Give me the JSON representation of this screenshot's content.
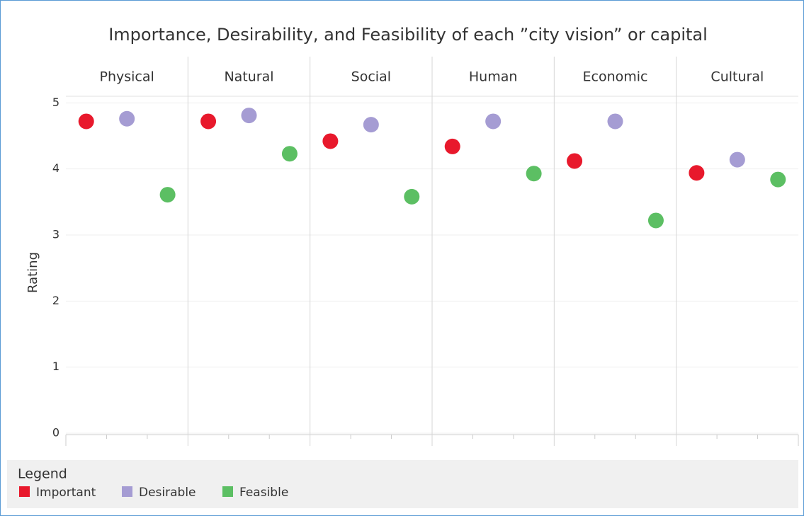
{
  "chart_data": {
    "type": "dot",
    "title": "Importance, Desirability, and Feasibility of each ”city vision” or capital",
    "y_label": "Rating",
    "legend_title": "Legend",
    "categories": [
      "Physical",
      "Natural",
      "Social",
      "Human",
      "Economic",
      "Cultural"
    ],
    "series": [
      {
        "name": "Important",
        "color": "#e8192c",
        "values": [
          4.72,
          4.72,
          4.42,
          4.34,
          4.12,
          3.94
        ]
      },
      {
        "name": "Desirable",
        "color": "#a59cd3",
        "values": [
          4.76,
          4.81,
          4.67,
          4.72,
          4.72,
          4.14
        ]
      },
      {
        "name": "Feasible",
        "color": "#5cbf63",
        "values": [
          3.61,
          4.23,
          3.58,
          3.93,
          3.22,
          3.84
        ]
      }
    ],
    "ylim": [
      0,
      5.1
    ],
    "yticks": [
      0,
      1,
      2,
      3,
      4,
      5
    ],
    "grid": true,
    "legend": "bottom"
  }
}
